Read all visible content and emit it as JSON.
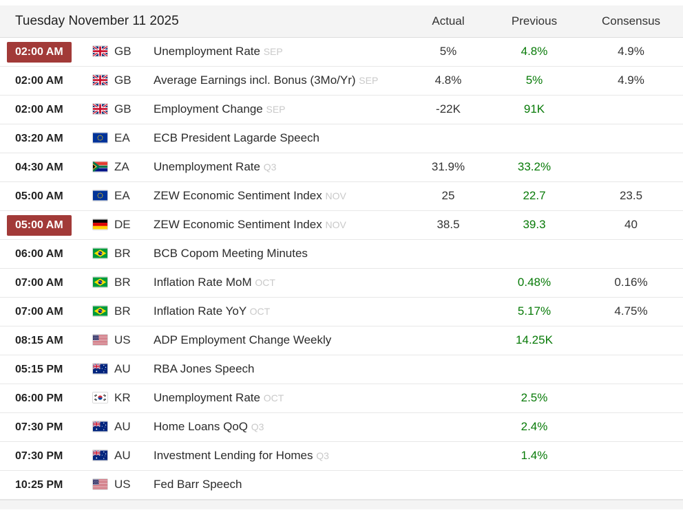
{
  "header": {
    "date": "Tuesday November 11 2025",
    "columns": {
      "actual": "Actual",
      "previous": "Previous",
      "consensus": "Consensus"
    }
  },
  "colors": {
    "highlight_badge": "#a23a38",
    "previous_green": "#077a07"
  },
  "rows": [
    {
      "time": "02:00 AM",
      "highlighted": true,
      "flag": "gb",
      "country": "GB",
      "title": "Unemployment Rate",
      "period": "SEP",
      "actual": "5%",
      "previous": "4.8%",
      "consensus": "4.9%"
    },
    {
      "time": "02:00 AM",
      "highlighted": false,
      "flag": "gb",
      "country": "GB",
      "title": "Average Earnings incl. Bonus (3Mo/Yr)",
      "period": "SEP",
      "actual": "4.8%",
      "previous": "5%",
      "consensus": "4.9%"
    },
    {
      "time": "02:00 AM",
      "highlighted": false,
      "flag": "gb",
      "country": "GB",
      "title": "Employment Change",
      "period": "SEP",
      "actual": "-22K",
      "previous": "91K",
      "consensus": ""
    },
    {
      "time": "03:20 AM",
      "highlighted": false,
      "flag": "ea",
      "country": "EA",
      "title": "ECB President Lagarde Speech",
      "period": "",
      "actual": "",
      "previous": "",
      "consensus": ""
    },
    {
      "time": "04:30 AM",
      "highlighted": false,
      "flag": "za",
      "country": "ZA",
      "title": "Unemployment Rate",
      "period": "Q3",
      "actual": "31.9%",
      "previous": "33.2%",
      "consensus": ""
    },
    {
      "time": "05:00 AM",
      "highlighted": false,
      "flag": "ea",
      "country": "EA",
      "title": "ZEW Economic Sentiment Index",
      "period": "NOV",
      "actual": "25",
      "previous": "22.7",
      "consensus": "23.5"
    },
    {
      "time": "05:00 AM",
      "highlighted": true,
      "flag": "de",
      "country": "DE",
      "title": "ZEW Economic Sentiment Index",
      "period": "NOV",
      "actual": "38.5",
      "previous": "39.3",
      "consensus": "40"
    },
    {
      "time": "06:00 AM",
      "highlighted": false,
      "flag": "br",
      "country": "BR",
      "title": "BCB Copom Meeting Minutes",
      "period": "",
      "actual": "",
      "previous": "",
      "consensus": ""
    },
    {
      "time": "07:00 AM",
      "highlighted": false,
      "flag": "br",
      "country": "BR",
      "title": "Inflation Rate MoM",
      "period": "OCT",
      "actual": "",
      "previous": "0.48%",
      "consensus": "0.16%"
    },
    {
      "time": "07:00 AM",
      "highlighted": false,
      "flag": "br",
      "country": "BR",
      "title": "Inflation Rate YoY",
      "period": "OCT",
      "actual": "",
      "previous": "5.17%",
      "consensus": "4.75%"
    },
    {
      "time": "08:15 AM",
      "highlighted": false,
      "flag": "us",
      "country": "US",
      "title": "ADP Employment Change Weekly",
      "period": "",
      "actual": "",
      "previous": "14.25K",
      "consensus": ""
    },
    {
      "time": "05:15 PM",
      "highlighted": false,
      "flag": "au",
      "country": "AU",
      "title": "RBA Jones Speech",
      "period": "",
      "actual": "",
      "previous": "",
      "consensus": ""
    },
    {
      "time": "06:00 PM",
      "highlighted": false,
      "flag": "kr",
      "country": "KR",
      "title": "Unemployment Rate",
      "period": "OCT",
      "actual": "",
      "previous": "2.5%",
      "consensus": ""
    },
    {
      "time": "07:30 PM",
      "highlighted": false,
      "flag": "au",
      "country": "AU",
      "title": "Home Loans QoQ",
      "period": "Q3",
      "actual": "",
      "previous": "2.4%",
      "consensus": ""
    },
    {
      "time": "07:30 PM",
      "highlighted": false,
      "flag": "au",
      "country": "AU",
      "title": "Investment Lending for Homes",
      "period": "Q3",
      "actual": "",
      "previous": "1.4%",
      "consensus": ""
    },
    {
      "time": "10:25 PM",
      "highlighted": false,
      "flag": "us",
      "country": "US",
      "title": "Fed Barr Speech",
      "period": "",
      "actual": "",
      "previous": "",
      "consensus": ""
    }
  ]
}
